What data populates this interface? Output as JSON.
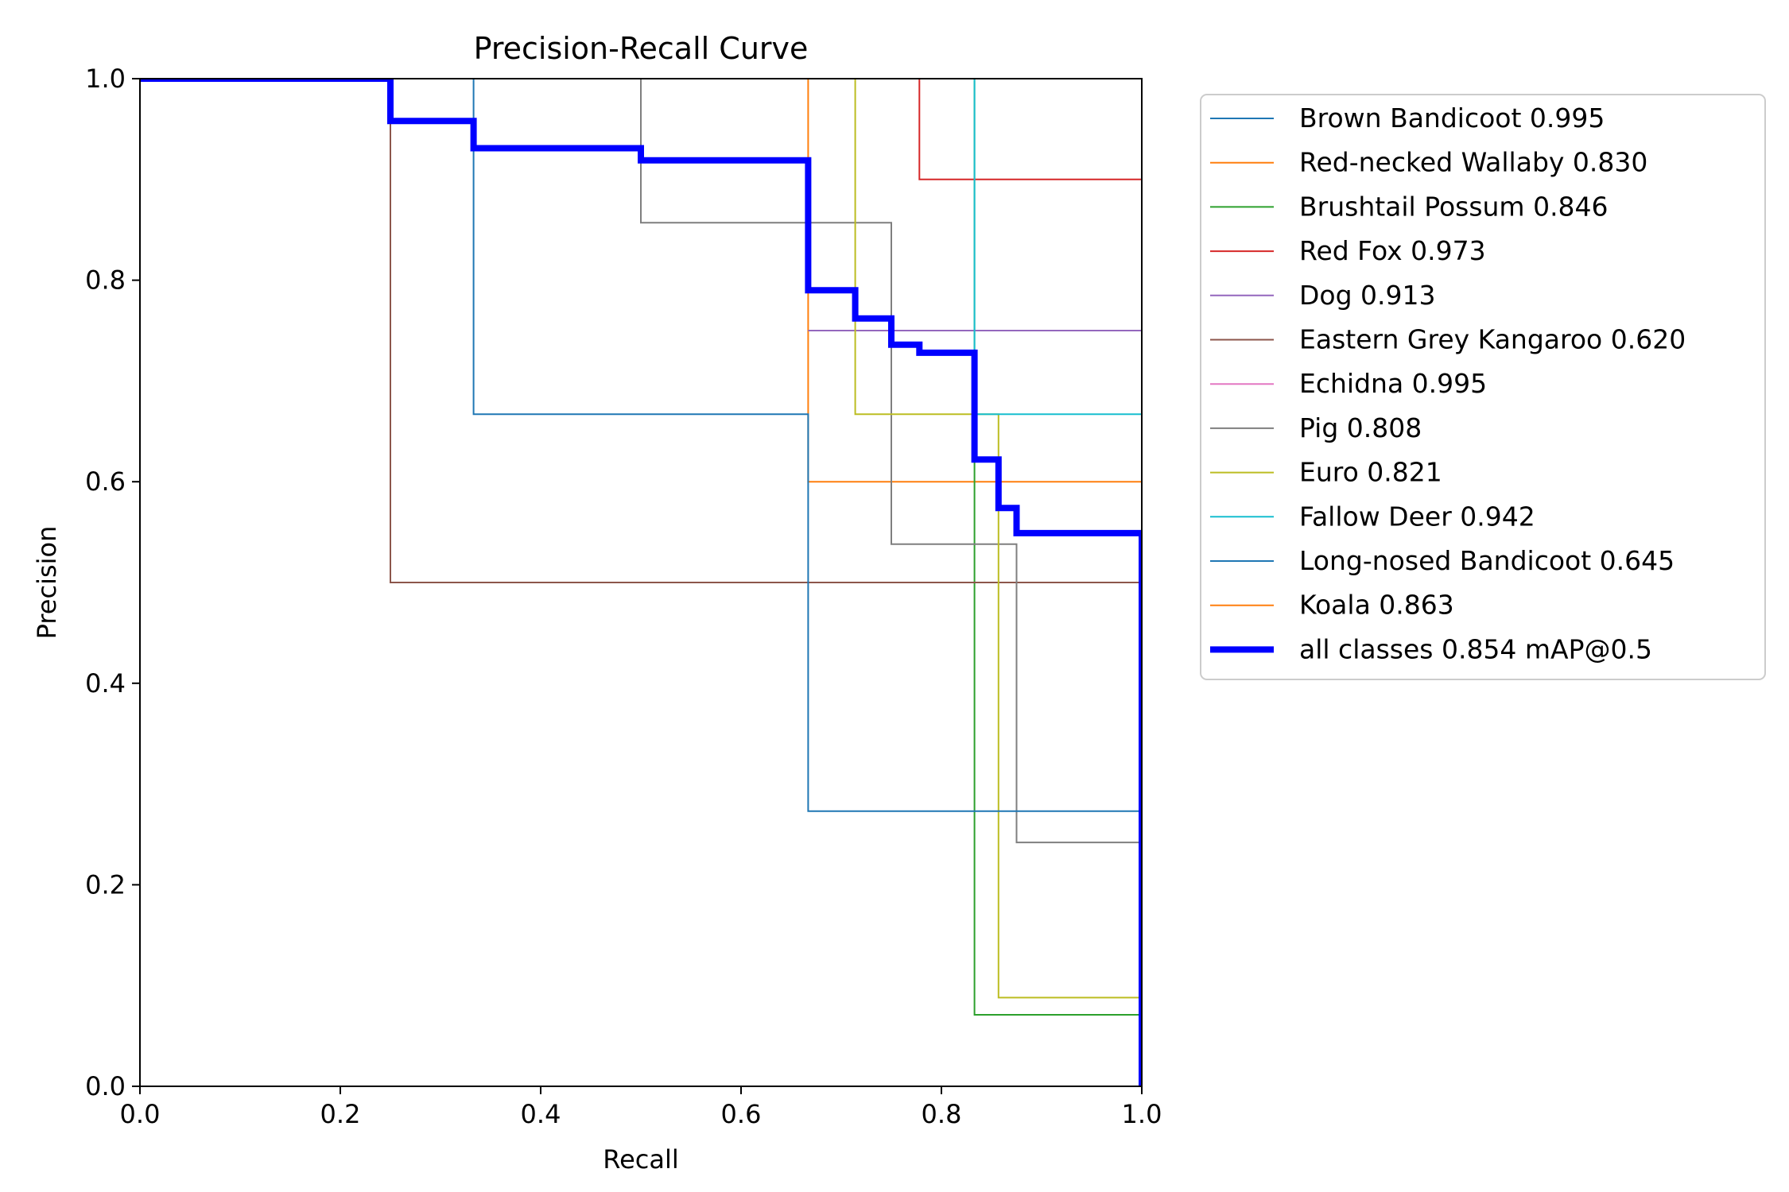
{
  "chart_data": {
    "type": "line",
    "title": "Precision-Recall Curve",
    "xlabel": "Recall",
    "ylabel": "Precision",
    "xlim": [
      0,
      1
    ],
    "ylim": [
      0,
      1
    ],
    "xticks": [
      "0.0",
      "0.2",
      "0.4",
      "0.6",
      "0.8",
      "1.0"
    ],
    "yticks": [
      "0.0",
      "0.2",
      "0.4",
      "0.6",
      "0.8",
      "1.0"
    ],
    "grid": false,
    "legend_position": "outside-right",
    "series": [
      {
        "name": "Brown Bandicoot 0.995",
        "color": "#1f77b4",
        "width": 2,
        "x": [
          0,
          1,
          1
        ],
        "y": [
          1,
          1,
          0
        ]
      },
      {
        "name": "Red-necked Wallaby 0.830",
        "color": "#ff7f0e",
        "width": 2,
        "x": [
          0.667,
          0.667,
          1,
          1
        ],
        "y": [
          1,
          0.6,
          0.6,
          0
        ]
      },
      {
        "name": "Brushtail Possum 0.846",
        "color": "#2ca02c",
        "width": 2,
        "x": [
          0.833,
          0.833,
          1,
          1
        ],
        "y": [
          1,
          0.071,
          0.071,
          0
        ]
      },
      {
        "name": "Red Fox 0.973",
        "color": "#d62728",
        "width": 2,
        "x": [
          0.778,
          0.778,
          1,
          1
        ],
        "y": [
          1,
          0.9,
          0.9,
          0
        ]
      },
      {
        "name": "Dog 0.913",
        "color": "#9467bd",
        "width": 2,
        "x": [
          0.667,
          1,
          1
        ],
        "y": [
          0.75,
          0.75,
          0
        ]
      },
      {
        "name": "Eastern Grey Kangaroo 0.620",
        "color": "#8c564b",
        "width": 2,
        "x": [
          0,
          0.25,
          0.25,
          1,
          1
        ],
        "y": [
          1,
          1,
          0.5,
          0.5,
          0
        ]
      },
      {
        "name": "Echidna 0.995",
        "color": "#e377c2",
        "width": 2,
        "x": [
          0,
          1,
          1
        ],
        "y": [
          1,
          1,
          0
        ]
      },
      {
        "name": "Pig 0.808",
        "color": "#7f7f7f",
        "width": 2,
        "x": [
          0.5,
          0.5,
          0.75,
          0.75,
          0.875,
          0.875,
          1,
          1
        ],
        "y": [
          1,
          0.857,
          0.857,
          0.538,
          0.538,
          0.242,
          0.242,
          0
        ]
      },
      {
        "name": "Euro 0.821",
        "color": "#bcbd22",
        "width": 2,
        "x": [
          0.714,
          0.714,
          0.857,
          0.857,
          1,
          1
        ],
        "y": [
          1,
          0.667,
          0.667,
          0.088,
          0.088,
          0
        ]
      },
      {
        "name": "Fallow Deer 0.942",
        "color": "#17becf",
        "width": 2,
        "x": [
          0.833,
          0.833,
          1,
          1
        ],
        "y": [
          1,
          0.667,
          0.667,
          0
        ]
      },
      {
        "name": "Long-nosed Bandicoot 0.645",
        "color": "#1f77b4",
        "width": 2,
        "x": [
          0.333,
          0.333,
          0.667,
          0.667,
          1,
          1
        ],
        "y": [
          1,
          0.667,
          0.667,
          0.273,
          0.273,
          0
        ]
      },
      {
        "name": "Koala 0.863",
        "color": "#ff7f0e",
        "width": 2,
        "x": [
          0,
          1,
          1
        ],
        "y": [
          1,
          1,
          0
        ]
      },
      {
        "name": "all classes 0.854 mAP@0.5",
        "color": "#0000ff",
        "width": 8,
        "x": [
          0,
          0.25,
          0.25,
          0.333,
          0.333,
          0.5,
          0.5,
          0.667,
          0.667,
          0.714,
          0.714,
          0.75,
          0.75,
          0.778,
          0.778,
          0.833,
          0.833,
          0.857,
          0.857,
          0.875,
          0.875,
          1,
          1
        ],
        "y": [
          1,
          1,
          0.958,
          0.958,
          0.931,
          0.931,
          0.919,
          0.919,
          0.79,
          0.79,
          0.762,
          0.762,
          0.736,
          0.736,
          0.728,
          0.728,
          0.622,
          0.622,
          0.574,
          0.574,
          0.549,
          0.549,
          0
        ]
      }
    ]
  }
}
